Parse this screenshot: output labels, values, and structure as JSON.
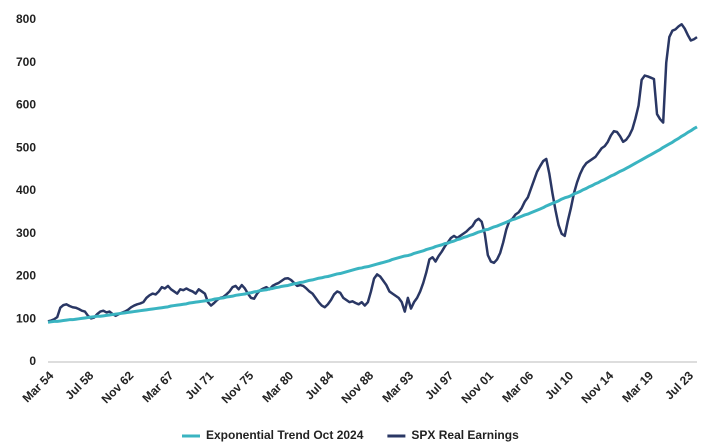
{
  "chart_data": {
    "type": "line",
    "categories": [
      "Mar 54",
      null,
      null,
      null,
      null,
      null,
      null,
      null,
      null,
      null,
      null,
      null,
      null,
      "Jul 58",
      null,
      null,
      null,
      null,
      null,
      null,
      null,
      null,
      null,
      null,
      null,
      null,
      "Nov 62",
      null,
      null,
      null,
      null,
      null,
      null,
      null,
      null,
      null,
      null,
      null,
      null,
      "Mar 67",
      null,
      null,
      null,
      null,
      null,
      null,
      null,
      null,
      null,
      null,
      null,
      null,
      "Jul 71",
      null,
      null,
      null,
      null,
      null,
      null,
      null,
      null,
      null,
      null,
      null,
      null,
      "Nov 75",
      null,
      null,
      null,
      null,
      null,
      null,
      null,
      null,
      null,
      null,
      null,
      null,
      "Mar 80",
      null,
      null,
      null,
      null,
      null,
      null,
      null,
      null,
      null,
      null,
      null,
      null,
      "Jul 84",
      null,
      null,
      null,
      null,
      null,
      null,
      null,
      null,
      null,
      null,
      null,
      null,
      "Nov 88",
      null,
      null,
      null,
      null,
      null,
      null,
      null,
      null,
      null,
      null,
      null,
      null,
      "Mar 93",
      null,
      null,
      null,
      null,
      null,
      null,
      null,
      null,
      null,
      null,
      null,
      null,
      "Jul 97",
      null,
      null,
      null,
      null,
      null,
      null,
      null,
      null,
      null,
      null,
      null,
      null,
      "Nov 01",
      null,
      null,
      null,
      null,
      null,
      null,
      null,
      null,
      null,
      null,
      null,
      null,
      "Mar 06",
      null,
      null,
      null,
      null,
      null,
      null,
      null,
      null,
      null,
      null,
      null,
      null,
      "Jul 10",
      null,
      null,
      null,
      null,
      null,
      null,
      null,
      null,
      null,
      null,
      null,
      null,
      "Nov 14",
      null,
      null,
      null,
      null,
      null,
      null,
      null,
      null,
      null,
      null,
      null,
      null,
      "Mar 19",
      null,
      null,
      null,
      null,
      null,
      null,
      null,
      null,
      null,
      null,
      null,
      null,
      "Jul 23",
      null,
      null,
      null
    ],
    "series": [
      {
        "name": "Exponential Trend Oct 2024",
        "color": "#3ab4c1",
        "values": [
          93,
          94,
          95,
          95,
          96,
          97,
          98,
          99,
          99,
          100,
          101,
          102,
          103,
          104,
          105,
          106,
          107,
          107,
          108,
          109,
          110,
          111,
          112,
          113,
          114,
          115,
          116,
          117,
          118,
          119,
          120,
          121,
          122,
          123,
          124,
          125,
          126,
          127,
          128,
          129,
          131,
          132,
          133,
          134,
          135,
          136,
          138,
          139,
          140,
          141,
          142,
          143,
          144,
          145,
          147,
          148,
          149,
          150,
          152,
          153,
          154,
          156,
          157,
          158,
          159,
          161,
          162,
          164,
          165,
          167,
          168,
          169,
          171,
          172,
          174,
          175,
          177,
          178,
          179,
          181,
          183,
          184,
          186,
          187,
          189,
          191,
          192,
          194,
          196,
          197,
          199,
          200,
          202,
          204,
          206,
          207,
          209,
          211,
          213,
          215,
          217,
          219,
          220,
          222,
          223,
          225,
          227,
          229,
          231,
          233,
          235,
          237,
          240,
          242,
          244,
          246,
          248,
          249,
          251,
          254,
          256,
          258,
          260,
          263,
          265,
          267,
          270,
          272,
          274,
          277,
          278,
          281,
          283,
          286,
          288,
          291,
          293,
          296,
          298,
          301,
          304,
          306,
          309,
          310,
          313,
          316,
          318,
          321,
          324,
          327,
          330,
          333,
          335,
          338,
          341,
          344,
          346,
          349,
          352,
          355,
          358,
          361,
          365,
          368,
          371,
          374,
          377,
          381,
          384,
          386,
          389,
          393,
          396,
          399,
          403,
          406,
          410,
          413,
          417,
          420,
          424,
          427,
          431,
          435,
          438,
          442,
          446,
          449,
          453,
          457,
          461,
          465,
          469,
          473,
          477,
          481,
          485,
          489,
          493,
          497,
          502,
          506,
          510,
          514,
          519,
          523,
          528,
          532,
          537,
          541,
          546,
          550
        ]
      },
      {
        "name": "SPX Real Earnings",
        "color": "#2a3764",
        "values": [
          95,
          97,
          100,
          105,
          127,
          133,
          135,
          131,
          128,
          127,
          124,
          120,
          118,
          108,
          102,
          104,
          112,
          118,
          120,
          116,
          118,
          112,
          108,
          112,
          115,
          118,
          122,
          128,
          132,
          135,
          137,
          140,
          150,
          156,
          160,
          158,
          165,
          175,
          172,
          178,
          170,
          165,
          160,
          170,
          168,
          172,
          168,
          165,
          160,
          170,
          165,
          160,
          140,
          132,
          138,
          145,
          150,
          152,
          158,
          165,
          175,
          178,
          170,
          180,
          172,
          160,
          150,
          148,
          160,
          168,
          172,
          175,
          170,
          178,
          182,
          185,
          190,
          195,
          196,
          192,
          185,
          178,
          180,
          178,
          172,
          165,
          160,
          150,
          140,
          132,
          128,
          135,
          145,
          158,
          165,
          162,
          150,
          145,
          140,
          142,
          138,
          135,
          140,
          132,
          140,
          165,
          195,
          205,
          200,
          190,
          180,
          165,
          160,
          155,
          150,
          140,
          118,
          150,
          125,
          140,
          150,
          165,
          185,
          210,
          240,
          245,
          235,
          248,
          258,
          270,
          280,
          290,
          295,
          290,
          295,
          300,
          305,
          312,
          318,
          330,
          335,
          328,
          300,
          250,
          235,
          232,
          240,
          255,
          280,
          310,
          330,
          335,
          345,
          350,
          360,
          375,
          385,
          405,
          425,
          445,
          458,
          470,
          475,
          440,
          395,
          355,
          320,
          300,
          295,
          330,
          360,
          395,
          420,
          440,
          455,
          465,
          470,
          475,
          480,
          490,
          500,
          505,
          515,
          530,
          540,
          538,
          528,
          515,
          520,
          530,
          545,
          570,
          600,
          660,
          670,
          668,
          665,
          662,
          580,
          568,
          560,
          700,
          760,
          775,
          778,
          785,
          790,
          780,
          765,
          752,
          755,
          760
        ]
      }
    ],
    "ylim": [
      0,
      800
    ],
    "yticks": [
      0,
      100,
      200,
      300,
      400,
      500,
      600,
      700,
      800
    ],
    "grid": false,
    "legend": "bottom"
  }
}
